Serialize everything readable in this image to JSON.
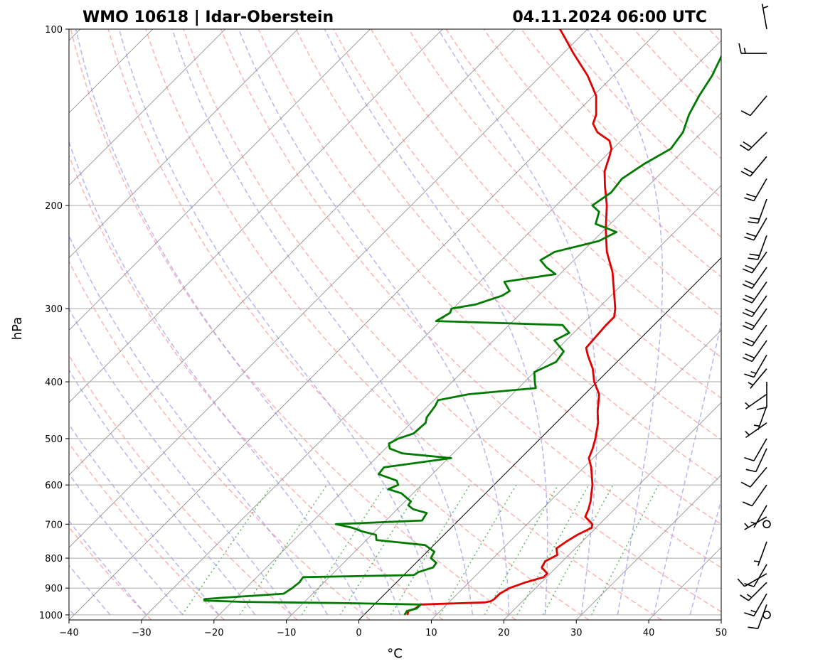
{
  "chart_data": {
    "type": "skew-t",
    "title_left": "WMO 10618 | Idar-Oberstein",
    "title_right": "04.11.2024 06:00 UTC",
    "xlabel": "°C",
    "ylabel": "hPa",
    "xlim": [
      -40,
      50
    ],
    "ylim": [
      1020,
      100
    ],
    "x_ticks": [
      "−40",
      "−30",
      "−20",
      "−10",
      "0",
      "10",
      "20",
      "30",
      "40",
      "50"
    ],
    "x_tick_values": [
      -40,
      -30,
      -20,
      -10,
      0,
      10,
      20,
      30,
      40,
      50
    ],
    "y_ticks": [
      "100",
      "200",
      "300",
      "400",
      "500",
      "600",
      "700",
      "800",
      "900",
      "1000"
    ],
    "y_tick_values": [
      100,
      200,
      300,
      400,
      500,
      600,
      700,
      800,
      900,
      1000
    ],
    "colors": {
      "temperature": "#e00000",
      "dewpoint": "#007a00",
      "dry_adiabat": "#ff9999",
      "moist_adiabat": "#9999ee",
      "mixing_ratio": "#44aa44",
      "isotherm": "#888888",
      "grid": "#aaaaaa"
    },
    "series": [
      {
        "name": "temperature",
        "points": [
          [
            1000,
            6.0
          ],
          [
            985,
            5.6
          ],
          [
            975,
            6.2
          ],
          [
            960,
            6.4
          ],
          [
            952,
            15.0
          ],
          [
            948,
            15.6
          ],
          [
            940,
            15.8
          ],
          [
            920,
            15.8
          ],
          [
            900,
            16.4
          ],
          [
            880,
            17.8
          ],
          [
            862,
            19.6
          ],
          [
            850,
            19.6
          ],
          [
            830,
            18.0
          ],
          [
            810,
            17.6
          ],
          [
            790,
            18.4
          ],
          [
            770,
            17.4
          ],
          [
            750,
            17.8
          ],
          [
            730,
            18.4
          ],
          [
            710,
            19.4
          ],
          [
            700,
            19.0
          ],
          [
            680,
            17.0
          ],
          [
            660,
            16.4
          ],
          [
            640,
            15.6
          ],
          [
            620,
            14.6
          ],
          [
            600,
            13.6
          ],
          [
            560,
            11.0
          ],
          [
            540,
            9.4
          ],
          [
            520,
            8.6
          ],
          [
            500,
            7.6
          ],
          [
            470,
            5.8
          ],
          [
            450,
            4.2
          ],
          [
            420,
            2.0
          ],
          [
            400,
            -0.4
          ],
          [
            380,
            -2.4
          ],
          [
            360,
            -5.0
          ],
          [
            350,
            -6.2
          ],
          [
            335,
            -6.4
          ],
          [
            320,
            -6.6
          ],
          [
            310,
            -6.6
          ],
          [
            300,
            -7.6
          ],
          [
            280,
            -10.2
          ],
          [
            260,
            -13.0
          ],
          [
            240,
            -16.6
          ],
          [
            220,
            -19.8
          ],
          [
            200,
            -23.0
          ],
          [
            185,
            -26.0
          ],
          [
            175,
            -28.0
          ],
          [
            165,
            -29.4
          ],
          [
            160,
            -30.2
          ],
          [
            155,
            -31.6
          ],
          [
            150,
            -34.4
          ],
          [
            145,
            -36.2
          ],
          [
            140,
            -37.0
          ],
          [
            130,
            -39.6
          ],
          [
            120,
            -43.6
          ],
          [
            110,
            -48.6
          ],
          [
            100,
            -53.8
          ]
        ]
      },
      {
        "name": "dewpoint",
        "points": [
          [
            1000,
            5.6
          ],
          [
            985,
            5.4
          ],
          [
            975,
            6.4
          ],
          [
            960,
            6.4
          ],
          [
            955,
            -4.0
          ],
          [
            950,
            -18.4
          ],
          [
            945,
            -24.0
          ],
          [
            940,
            -24.2
          ],
          [
            935,
            -22.0
          ],
          [
            920,
            -14.0
          ],
          [
            900,
            -13.6
          ],
          [
            880,
            -13.4
          ],
          [
            862,
            -13.6
          ],
          [
            855,
            1.4
          ],
          [
            845,
            1.6
          ],
          [
            830,
            3.0
          ],
          [
            815,
            2.8
          ],
          [
            800,
            1.4
          ],
          [
            780,
            1.0
          ],
          [
            760,
            -1.2
          ],
          [
            745,
            -8.6
          ],
          [
            730,
            -9.4
          ],
          [
            720,
            -11.8
          ],
          [
            710,
            -13.6
          ],
          [
            700,
            -16.4
          ],
          [
            690,
            -5.0
          ],
          [
            680,
            -5.2
          ],
          [
            670,
            -5.4
          ],
          [
            660,
            -7.8
          ],
          [
            650,
            -9.0
          ],
          [
            640,
            -9.2
          ],
          [
            630,
            -10.4
          ],
          [
            620,
            -11.6
          ],
          [
            610,
            -14.0
          ],
          [
            600,
            -13.2
          ],
          [
            590,
            -14.0
          ],
          [
            575,
            -17.4
          ],
          [
            560,
            -17.6
          ],
          [
            540,
            -9.6
          ],
          [
            530,
            -17.0
          ],
          [
            520,
            -19.4
          ],
          [
            510,
            -20.2
          ],
          [
            500,
            -19.6
          ],
          [
            490,
            -18.2
          ],
          [
            470,
            -18.0
          ],
          [
            460,
            -18.6
          ],
          [
            440,
            -19.0
          ],
          [
            430,
            -19.4
          ],
          [
            420,
            -16.0
          ],
          [
            410,
            -7.6
          ],
          [
            400,
            -8.6
          ],
          [
            385,
            -10.0
          ],
          [
            370,
            -8.4
          ],
          [
            355,
            -8.8
          ],
          [
            340,
            -11.6
          ],
          [
            330,
            -10.6
          ],
          [
            320,
            -12.6
          ],
          [
            315,
            -30.6
          ],
          [
            305,
            -29.8
          ],
          [
            300,
            -30.2
          ],
          [
            295,
            -27.4
          ],
          [
            285,
            -25.0
          ],
          [
            280,
            -24.6
          ],
          [
            270,
            -26.6
          ],
          [
            262,
            -20.6
          ],
          [
            255,
            -22.8
          ],
          [
            248,
            -24.6
          ],
          [
            240,
            -23.8
          ],
          [
            230,
            -19.2
          ],
          [
            222,
            -18.0
          ],
          [
            215,
            -22.0
          ],
          [
            205,
            -23.2
          ],
          [
            200,
            -25.0
          ],
          [
            190,
            -24.2
          ],
          [
            180,
            -24.6
          ],
          [
            170,
            -23.6
          ],
          [
            160,
            -22.0
          ],
          [
            150,
            -22.6
          ],
          [
            140,
            -24.2
          ],
          [
            130,
            -25.4
          ],
          [
            120,
            -26.4
          ],
          [
            110,
            -28.0
          ],
          [
            100,
            -30.0
          ]
        ]
      }
    ],
    "wind_barbs": [
      {
        "p": 1000,
        "speed_kt": 0
      },
      {
        "p": 960,
        "dir": 200,
        "speed_kt": 10
      },
      {
        "p": 920,
        "dir": 210,
        "speed_kt": 15
      },
      {
        "p": 880,
        "dir": 225,
        "speed_kt": 15
      },
      {
        "p": 850,
        "dir": 240,
        "speed_kt": 10
      },
      {
        "p": 820,
        "dir": 210,
        "speed_kt": 10
      },
      {
        "p": 750,
        "dir": 200,
        "speed_kt": 5
      },
      {
        "p": 700,
        "speed_kt": 0
      },
      {
        "p": 680,
        "dir": 240,
        "speed_kt": 5
      },
      {
        "p": 650,
        "dir": 210,
        "speed_kt": 5
      },
      {
        "p": 600,
        "dir": 215,
        "speed_kt": 10
      },
      {
        "p": 560,
        "dir": 220,
        "speed_kt": 10
      },
      {
        "p": 520,
        "dir": 205,
        "speed_kt": 10
      },
      {
        "p": 500,
        "dir": 210,
        "speed_kt": 10
      },
      {
        "p": 470,
        "dir": 235,
        "speed_kt": 5
      },
      {
        "p": 440,
        "dir": 200,
        "speed_kt": 5
      },
      {
        "p": 420,
        "dir": 235,
        "speed_kt": 5
      },
      {
        "p": 400,
        "dir": 180,
        "speed_kt": 10
      },
      {
        "p": 380,
        "dir": 220,
        "speed_kt": 5
      },
      {
        "p": 360,
        "dir": 210,
        "speed_kt": 15
      },
      {
        "p": 340,
        "dir": 215,
        "speed_kt": 20
      },
      {
        "p": 320,
        "dir": 215,
        "speed_kt": 20
      },
      {
        "p": 300,
        "dir": 215,
        "speed_kt": 20
      },
      {
        "p": 285,
        "dir": 215,
        "speed_kt": 20
      },
      {
        "p": 270,
        "dir": 215,
        "speed_kt": 20
      },
      {
        "p": 255,
        "dir": 215,
        "speed_kt": 20
      },
      {
        "p": 240,
        "dir": 215,
        "speed_kt": 20
      },
      {
        "p": 225,
        "dir": 200,
        "speed_kt": 20
      },
      {
        "p": 210,
        "dir": 210,
        "speed_kt": 20
      },
      {
        "p": 195,
        "dir": 200,
        "speed_kt": 20
      },
      {
        "p": 180,
        "dir": 210,
        "speed_kt": 20
      },
      {
        "p": 165,
        "dir": 220,
        "speed_kt": 20
      },
      {
        "p": 150,
        "dir": 225,
        "speed_kt": 20
      },
      {
        "p": 130,
        "dir": 220,
        "speed_kt": 10
      },
      {
        "p": 110,
        "dir": 270,
        "speed_kt": 15
      },
      {
        "p": 100,
        "dir": 350,
        "speed_kt": 5
      }
    ]
  }
}
